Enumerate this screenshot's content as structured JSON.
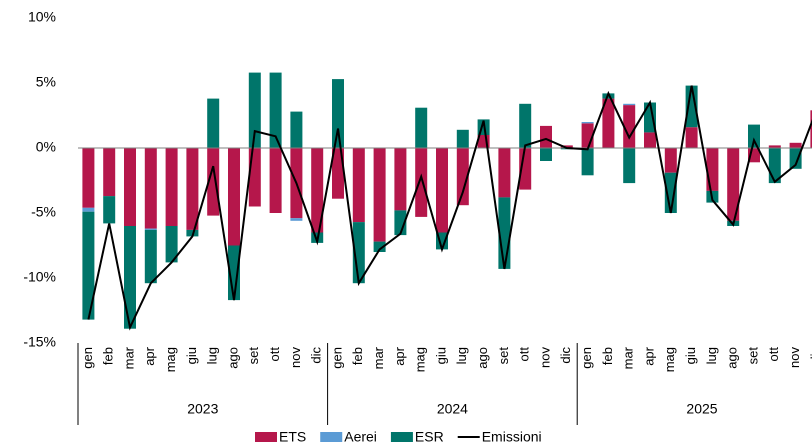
{
  "chart_data": {
    "type": "stacked-bar-line",
    "categories": [
      "gen",
      "feb",
      "mar",
      "apr",
      "mag",
      "giu",
      "lug",
      "ago",
      "set",
      "ott",
      "nov",
      "dic",
      "gen",
      "feb",
      "mar",
      "apr",
      "mag",
      "giu",
      "lug",
      "ago",
      "set",
      "ott",
      "nov",
      "dic",
      "gen",
      "feb",
      "mar",
      "apr",
      "mag",
      "giu",
      "lug",
      "ago",
      "set",
      "ott",
      "nov",
      "dic"
    ],
    "groups": [
      "2023",
      "2024",
      "2025"
    ],
    "series": [
      {
        "name": "ETS",
        "color": "#b5174b",
        "values": [
          -4.6,
          -3.7,
          -6,
          -6.2,
          -6,
          -6.3,
          -5.2,
          -7.5,
          -4.5,
          -5,
          -5.4,
          -6.5,
          -3.9,
          -5.7,
          -7.2,
          -4.8,
          -5.3,
          -6.5,
          -4.4,
          1,
          -3.8,
          -3.2,
          1.7,
          0.2,
          1.9,
          3.8,
          3.3,
          1.2,
          -1.9,
          1.6,
          -3.3,
          -5.6,
          -1.1,
          0.2,
          0.4,
          2.9
        ]
      },
      {
        "name": "Aerei",
        "color": "#5b9bd5",
        "values": [
          -0.3,
          0,
          0,
          -0.1,
          0,
          0,
          0,
          0,
          0,
          0,
          -0.2,
          0,
          0,
          0,
          0,
          0,
          0,
          0,
          0,
          0,
          0,
          0,
          0,
          0,
          0.1,
          0,
          0.1,
          0,
          0,
          0,
          0,
          0,
          0,
          0,
          0,
          0
        ]
      },
      {
        "name": "ESR",
        "color": "#00756a",
        "values": [
          -8.3,
          -2.1,
          -7.9,
          -4.1,
          -2.8,
          -0.5,
          3.8,
          -4.2,
          5.8,
          5.8,
          2.8,
          -0.8,
          5.3,
          -4.7,
          -0.8,
          -1.9,
          3.1,
          -1.3,
          1.4,
          1.2,
          -5.5,
          3.4,
          -1,
          -0.1,
          -2.1,
          0.4,
          -2.7,
          2.3,
          -3.1,
          3.2,
          -0.9,
          -0.4,
          1.8,
          -2.7,
          -1.6,
          0
        ]
      },
      {
        "name": "Emissioni",
        "color": "#000000",
        "kind": "line",
        "values": [
          -13.2,
          -5.8,
          -13.8,
          -10.4,
          -8.8,
          -6.8,
          -1.4,
          -11.7,
          1.3,
          0.9,
          -2.7,
          -7.2,
          1.5,
          -10.4,
          -7.8,
          -6.6,
          -2.2,
          -7.8,
          -3.4,
          2.1,
          -9.3,
          0.2,
          0.7,
          0,
          -0.1,
          4.2,
          0.8,
          3.5,
          -5,
          4.8,
          -4,
          -5.9,
          0.6,
          -2.6,
          -1.3,
          2.9
        ]
      }
    ],
    "ylim": [
      -15,
      10
    ],
    "yticks": [
      {
        "value": -15,
        "label": "-15%"
      },
      {
        "value": -10,
        "label": "-10%"
      },
      {
        "value": -5,
        "label": "-5%"
      },
      {
        "value": 0,
        "label": "0%"
      },
      {
        "value": 5,
        "label": "5%"
      },
      {
        "value": 10,
        "label": "10%"
      }
    ],
    "legend": "bottom"
  }
}
